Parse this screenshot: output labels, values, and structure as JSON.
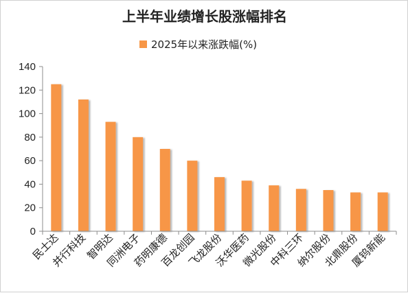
{
  "chart_data": {
    "type": "bar",
    "title": "上半年业绩增长股涨幅排名",
    "categories": [
      "民士达",
      "并行科技",
      "智明达",
      "同洲电子",
      "药明康德",
      "百龙创园",
      "飞龙股份",
      "沃华医药",
      "微光股份",
      "中科三环",
      "纳尔股份",
      "北鼎股份",
      "厦钨新能"
    ],
    "series": [
      {
        "name": "2025年以来涨跌幅(%)",
        "values": [
          125,
          112,
          93,
          80,
          70,
          60,
          46,
          43,
          39,
          36,
          35,
          33,
          33
        ],
        "color": "#F79646"
      }
    ],
    "ylim": [
      0,
      140
    ],
    "yticks": [
      0,
      20,
      40,
      60,
      80,
      100,
      120,
      140
    ],
    "xlabel": "",
    "ylabel": "",
    "grid": false,
    "legend_position": "top"
  }
}
